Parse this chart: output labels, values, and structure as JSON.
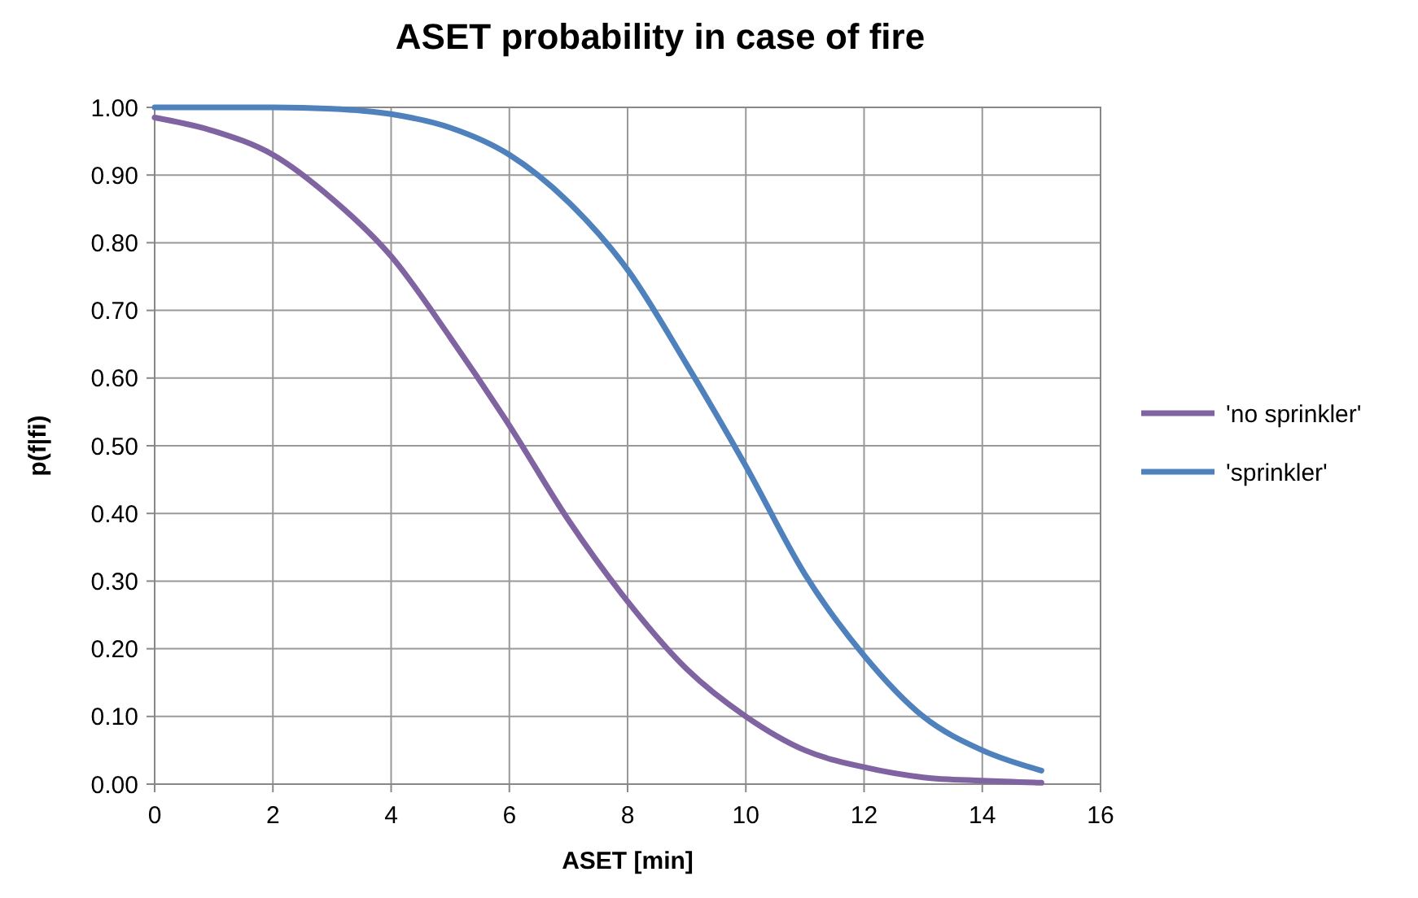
{
  "chart_data": {
    "type": "line",
    "title": "ASET probability in case of fire",
    "xlabel": "ASET [min]",
    "ylabel": "p(f|fi)",
    "x": [
      0,
      1,
      2,
      3,
      4,
      5,
      6,
      7,
      8,
      9,
      10,
      11,
      12,
      13,
      14,
      15
    ],
    "series": [
      {
        "name": "'no sprinkler'",
        "color": "#8064a2",
        "values": [
          0.985,
          0.965,
          0.93,
          0.865,
          0.78,
          0.66,
          0.53,
          0.39,
          0.27,
          0.17,
          0.1,
          0.05,
          0.025,
          0.01,
          0.005,
          0.002
        ]
      },
      {
        "name": "'sprinkler'",
        "color": "#4f81bd",
        "values": [
          1.0,
          1.0,
          1.0,
          0.998,
          0.99,
          0.97,
          0.93,
          0.86,
          0.76,
          0.62,
          0.47,
          0.31,
          0.19,
          0.1,
          0.05,
          0.02
        ]
      }
    ],
    "xlim": [
      0,
      16
    ],
    "xticks": [
      0,
      2,
      4,
      6,
      8,
      10,
      12,
      14,
      16
    ],
    "ylim": [
      0,
      1
    ],
    "yticks": [
      {
        "value": 0,
        "label": "0.00"
      },
      {
        "value": 0.1,
        "label": "0.10"
      },
      {
        "value": 0.2,
        "label": "0.20"
      },
      {
        "value": 0.3,
        "label": "0.30"
      },
      {
        "value": 0.4,
        "label": "0.40"
      },
      {
        "value": 0.5,
        "label": "0.50"
      },
      {
        "value": 0.6,
        "label": "0.60"
      },
      {
        "value": 0.7,
        "label": "0.70"
      },
      {
        "value": 0.8,
        "label": "0.80"
      },
      {
        "value": 0.9,
        "label": "0.90"
      },
      {
        "value": 1,
        "label": "1.00"
      }
    ],
    "grid": true,
    "legend": "right",
    "marker": "none",
    "line_style": "solid"
  }
}
